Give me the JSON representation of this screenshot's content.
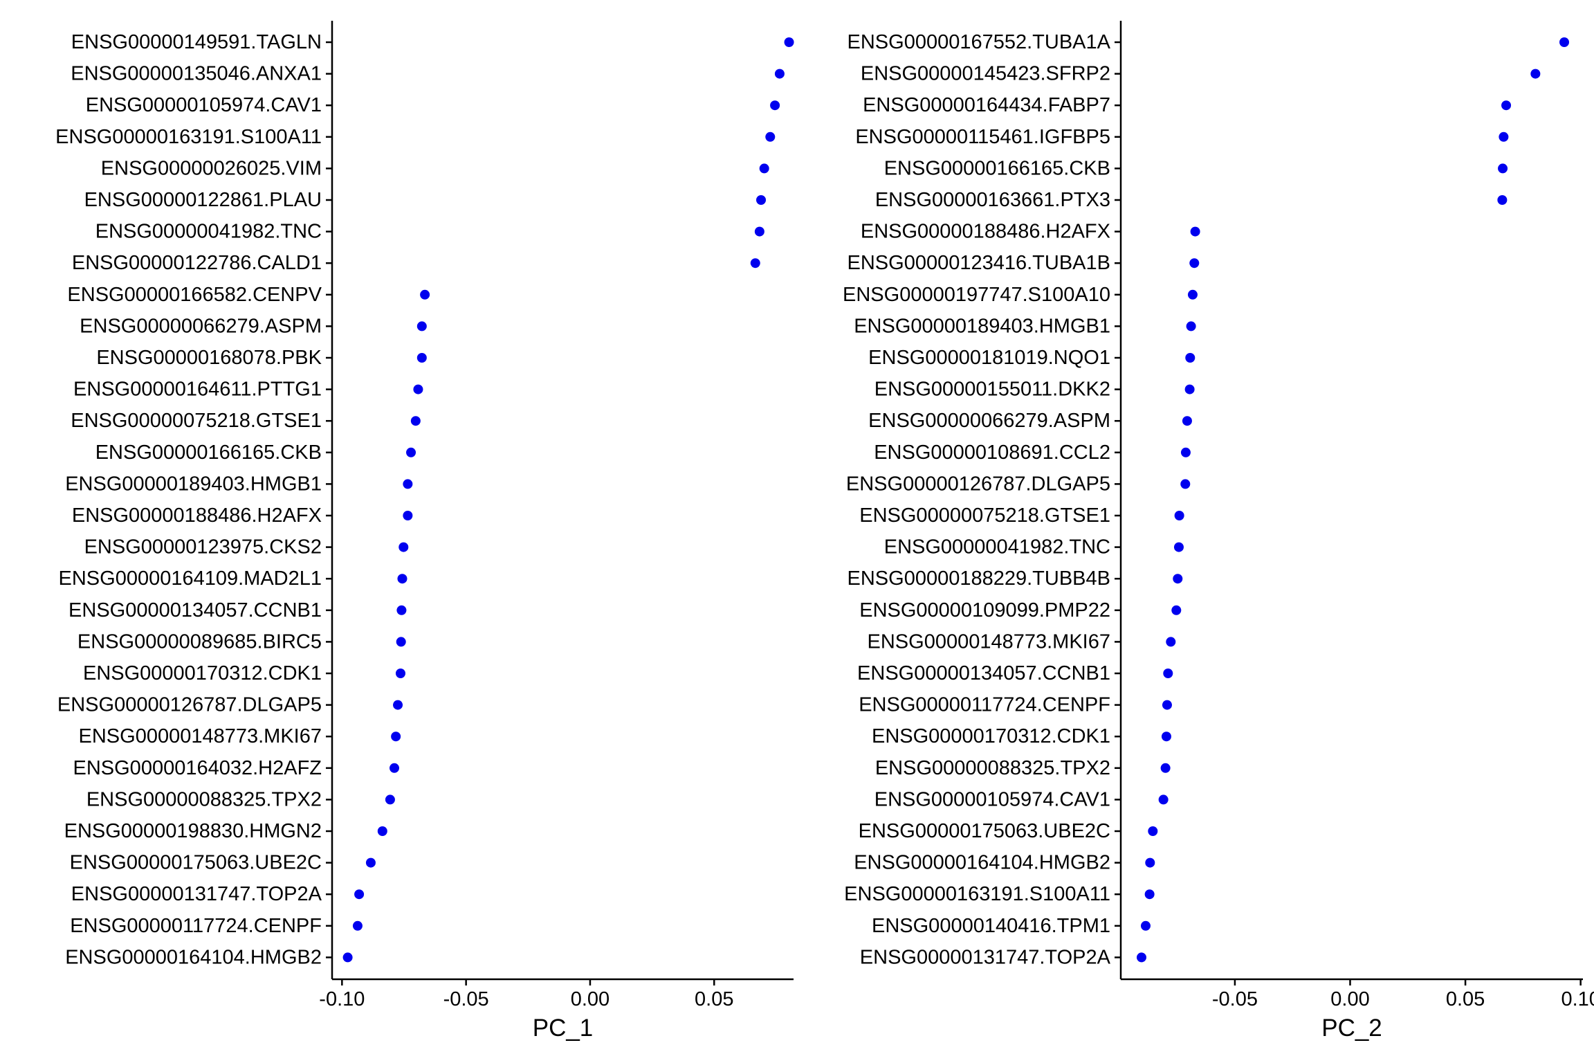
{
  "point_color": "#0000ee",
  "axis_color": "#000000",
  "chart_data": [
    {
      "type": "scatter",
      "xlabel": "PC_1",
      "ylabel": "",
      "xlim": [
        -0.104,
        0.082
      ],
      "xticks": [
        -0.1,
        -0.05,
        0.0,
        0.05
      ],
      "xtick_labels": [
        "-0.10",
        "-0.05",
        "0.00",
        "0.05"
      ],
      "grid": false,
      "categories": [
        "ENSG00000149591.TAGLN",
        "ENSG00000135046.ANXA1",
        "ENSG00000105974.CAV1",
        "ENSG00000163191.S100A11",
        "ENSG00000026025.VIM",
        "ENSG00000122861.PLAU",
        "ENSG00000041982.TNC",
        "ENSG00000122786.CALD1",
        "ENSG00000166582.CENPV",
        "ENSG00000066279.ASPM",
        "ENSG00000168078.PBK",
        "ENSG00000164611.PTTG1",
        "ENSG00000075218.GTSE1",
        "ENSG00000166165.CKB",
        "ENSG00000189403.HMGB1",
        "ENSG00000188486.H2AFX",
        "ENSG00000123975.CKS2",
        "ENSG00000164109.MAD2L1",
        "ENSG00000134057.CCNB1",
        "ENSG00000089685.BIRC5",
        "ENSG00000170312.CDK1",
        "ENSG00000126787.DLGAP5",
        "ENSG00000148773.MKI67",
        "ENSG00000164032.H2AFZ",
        "ENSG00000088325.TPX2",
        "ENSG00000198830.HMGN2",
        "ENSG00000175063.UBE2C",
        "ENSG00000131747.TOP2A",
        "ENSG00000117724.CENPF",
        "ENSG00000164104.HMGB2"
      ],
      "values": [
        0.0802,
        0.0764,
        0.0745,
        0.0726,
        0.0702,
        0.0689,
        0.0683,
        0.0666,
        -0.0666,
        -0.0678,
        -0.0678,
        -0.0693,
        -0.0703,
        -0.0722,
        -0.0735,
        -0.0735,
        -0.0752,
        -0.0757,
        -0.076,
        -0.0762,
        -0.0764,
        -0.0775,
        -0.0783,
        -0.0789,
        -0.0806,
        -0.0837,
        -0.0884,
        -0.0931,
        -0.0937,
        -0.0977
      ]
    },
    {
      "type": "scatter",
      "xlabel": "PC_2",
      "ylabel": "",
      "xlim": [
        -0.0995,
        0.101
      ],
      "xticks": [
        -0.05,
        0.0,
        0.05,
        0.1
      ],
      "xtick_labels": [
        "-0.05",
        "0.00",
        "0.05",
        "0.10"
      ],
      "grid": false,
      "categories": [
        "ENSG00000167552.TUBA1A",
        "ENSG00000145423.SFRP2",
        "ENSG00000164434.FABP7",
        "ENSG00000115461.IGFBP5",
        "ENSG00000166165.CKB",
        "ENSG00000163661.PTX3",
        "ENSG00000188486.H2AFX",
        "ENSG00000123416.TUBA1B",
        "ENSG00000197747.S100A10",
        "ENSG00000189403.HMGB1",
        "ENSG00000181019.NQO1",
        "ENSG00000155011.DKK2",
        "ENSG00000066279.ASPM",
        "ENSG00000108691.CCL2",
        "ENSG00000126787.DLGAP5",
        "ENSG00000075218.GTSE1",
        "ENSG00000041982.TNC",
        "ENSG00000188229.TUBB4B",
        "ENSG00000109099.PMP22",
        "ENSG00000148773.MKI67",
        "ENSG00000134057.CCNB1",
        "ENSG00000117724.CENPF",
        "ENSG00000170312.CDK1",
        "ENSG00000088325.TPX2",
        "ENSG00000105974.CAV1",
        "ENSG00000175063.UBE2C",
        "ENSG00000164104.HMGB2",
        "ENSG00000163191.S100A11",
        "ENSG00000140416.TPM1",
        "ENSG00000131747.TOP2A"
      ],
      "values": [
        0.0929,
        0.0804,
        0.0677,
        0.0666,
        0.0662,
        0.066,
        -0.0672,
        -0.0676,
        -0.0683,
        -0.069,
        -0.0694,
        -0.0696,
        -0.0707,
        -0.0713,
        -0.0715,
        -0.0741,
        -0.0743,
        -0.0748,
        -0.0754,
        -0.0778,
        -0.079,
        -0.0794,
        -0.0797,
        -0.0801,
        -0.081,
        -0.0856,
        -0.0868,
        -0.087,
        -0.0887,
        -0.0905
      ]
    }
  ]
}
